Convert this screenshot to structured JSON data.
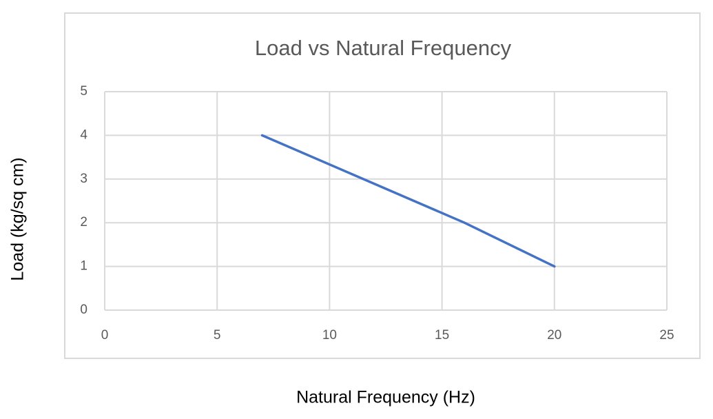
{
  "chart_data": {
    "type": "line",
    "title": "Load vs Natural Frequency",
    "x_label": "Natural Frequency (Hz)",
    "y_label": "Load (kg/sq cm)",
    "x": [
      7,
      16,
      20
    ],
    "values": [
      4,
      2,
      1
    ],
    "color": "#4472c4",
    "xlim": [
      0,
      25
    ],
    "xticks": [
      0,
      5,
      10,
      15,
      20,
      25
    ],
    "ylim": [
      0,
      5
    ],
    "yticks": [
      0,
      1,
      2,
      3,
      4,
      5
    ],
    "grid": true
  }
}
